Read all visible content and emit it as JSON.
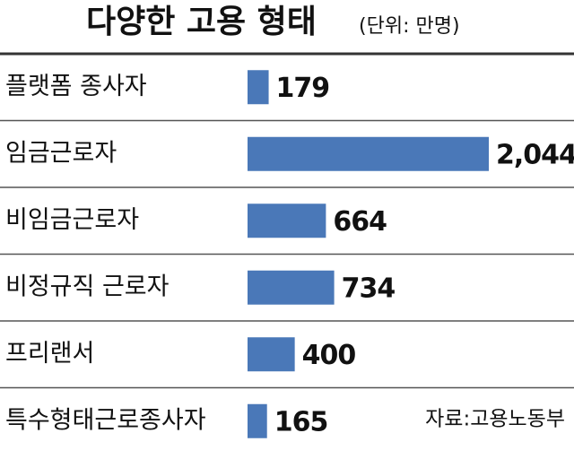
{
  "chart_data": {
    "type": "bar",
    "orientation": "horizontal",
    "title": "다양한 고용 형태",
    "subtitle": "(단위: 만명)",
    "categories": [
      "플랫폼 종사자",
      "임금근로자",
      "비임금근로자",
      "비정규직 근로자",
      "프리랜서",
      "특수형태근로종사자"
    ],
    "values": [
      179,
      2044,
      664,
      734,
      400,
      165
    ],
    "value_labels": [
      "179",
      "2,044",
      "664",
      "734",
      "400",
      "165"
    ],
    "color": "#4a78b8",
    "source": "자료:고용노동부"
  }
}
